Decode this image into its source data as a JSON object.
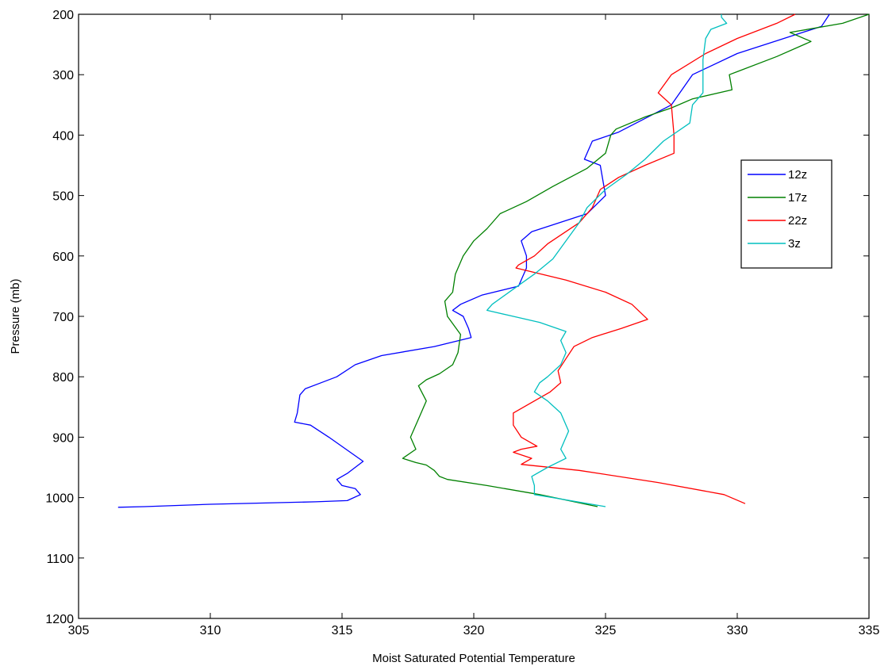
{
  "chart_data": {
    "type": "line",
    "title": "",
    "xlabel": "Moist Saturated Potential Temperature",
    "ylabel": "Pressure (mb)",
    "xlim": [
      305,
      335
    ],
    "ylim": [
      200,
      1200
    ],
    "y_inverted": true,
    "grid": false,
    "legend_position": "right",
    "xticks": [
      305,
      310,
      315,
      320,
      325,
      330,
      335
    ],
    "yticks": [
      200,
      300,
      400,
      500,
      600,
      700,
      800,
      900,
      1000,
      1100,
      1200
    ],
    "series": [
      {
        "name": "12z",
        "color": "#0000ff",
        "points": [
          [
            333.5,
            200
          ],
          [
            333.2,
            220
          ],
          [
            330,
            265
          ],
          [
            328.3,
            300
          ],
          [
            327.5,
            350
          ],
          [
            325.5,
            395
          ],
          [
            324.5,
            410
          ],
          [
            324.2,
            440
          ],
          [
            324.8,
            450
          ],
          [
            325.0,
            500
          ],
          [
            324.3,
            530
          ],
          [
            322.2,
            560
          ],
          [
            321.8,
            575
          ],
          [
            322.0,
            600
          ],
          [
            322.0,
            620
          ],
          [
            321.7,
            650
          ],
          [
            320.3,
            665
          ],
          [
            319.5,
            680
          ],
          [
            319.2,
            690
          ],
          [
            319.6,
            700
          ],
          [
            319.8,
            720
          ],
          [
            319.9,
            735
          ],
          [
            318.5,
            750
          ],
          [
            316.5,
            765
          ],
          [
            315.5,
            780
          ],
          [
            314.8,
            800
          ],
          [
            314.2,
            810
          ],
          [
            313.6,
            820
          ],
          [
            313.4,
            830
          ],
          [
            313.3,
            860
          ],
          [
            313.2,
            875
          ],
          [
            313.8,
            880
          ],
          [
            314.5,
            900
          ],
          [
            315.8,
            940
          ],
          [
            315.5,
            950
          ],
          [
            315.2,
            960
          ],
          [
            314.8,
            970
          ],
          [
            315.0,
            980
          ],
          [
            315.5,
            985
          ],
          [
            315.7,
            995
          ],
          [
            315.2,
            1005
          ],
          [
            314.0,
            1007
          ],
          [
            310,
            1011
          ],
          [
            307.5,
            1015
          ],
          [
            306.5,
            1016
          ]
        ]
      },
      {
        "name": "17z",
        "color": "#008000",
        "points": [
          [
            335,
            200
          ],
          [
            334,
            215
          ],
          [
            332,
            230
          ],
          [
            332.8,
            245
          ],
          [
            331.5,
            270
          ],
          [
            330.0,
            295
          ],
          [
            329.7,
            300
          ],
          [
            329.8,
            325
          ],
          [
            328.3,
            340
          ],
          [
            327.5,
            355
          ],
          [
            326.5,
            370
          ],
          [
            325.4,
            390
          ],
          [
            325.2,
            400
          ],
          [
            325.0,
            430
          ],
          [
            324.3,
            455
          ],
          [
            323.0,
            485
          ],
          [
            322.0,
            510
          ],
          [
            321.0,
            530
          ],
          [
            320.5,
            555
          ],
          [
            320.0,
            575
          ],
          [
            319.6,
            600
          ],
          [
            319.3,
            630
          ],
          [
            319.2,
            660
          ],
          [
            318.9,
            675
          ],
          [
            319.0,
            700
          ],
          [
            319.5,
            730
          ],
          [
            319.4,
            760
          ],
          [
            319.2,
            780
          ],
          [
            318.7,
            795
          ],
          [
            318.2,
            805
          ],
          [
            317.9,
            815
          ],
          [
            318.2,
            840
          ],
          [
            317.9,
            870
          ],
          [
            317.6,
            900
          ],
          [
            317.8,
            920
          ],
          [
            317.3,
            935
          ],
          [
            317.8,
            942
          ],
          [
            318.2,
            946
          ],
          [
            318.5,
            955
          ],
          [
            318.7,
            965
          ],
          [
            319.0,
            970
          ],
          [
            320.5,
            980
          ],
          [
            322.5,
            995
          ],
          [
            324.7,
            1015
          ]
        ]
      },
      {
        "name": "22z",
        "color": "#ff0000",
        "points": [
          [
            332.2,
            200
          ],
          [
            331.5,
            215
          ],
          [
            330.0,
            240
          ],
          [
            328.8,
            265
          ],
          [
            327.5,
            300
          ],
          [
            327.0,
            330
          ],
          [
            327.5,
            350
          ],
          [
            327.6,
            400
          ],
          [
            327.6,
            430
          ],
          [
            326.5,
            450
          ],
          [
            325.5,
            470
          ],
          [
            324.8,
            490
          ],
          [
            324.5,
            520
          ],
          [
            324.0,
            545
          ],
          [
            322.8,
            580
          ],
          [
            322.3,
            600
          ],
          [
            321.7,
            615
          ],
          [
            321.6,
            620
          ],
          [
            323.5,
            640
          ],
          [
            325.0,
            660
          ],
          [
            326.0,
            680
          ],
          [
            326.6,
            705
          ],
          [
            325.6,
            720
          ],
          [
            324.5,
            735
          ],
          [
            323.8,
            750
          ],
          [
            323.5,
            770
          ],
          [
            323.2,
            790
          ],
          [
            323.3,
            810
          ],
          [
            322.9,
            825
          ],
          [
            321.5,
            860
          ],
          [
            321.5,
            880
          ],
          [
            321.8,
            900
          ],
          [
            322.4,
            915
          ],
          [
            321.8,
            920
          ],
          [
            321.5,
            925
          ],
          [
            322.2,
            935
          ],
          [
            321.8,
            945
          ],
          [
            324.0,
            955
          ],
          [
            327.0,
            975
          ],
          [
            329.5,
            995
          ],
          [
            330.3,
            1010
          ]
        ]
      },
      {
        "name": "3z",
        "color": "#00bfbf",
        "points": [
          [
            329.4,
            200
          ],
          [
            329.4,
            205
          ],
          [
            329.6,
            215
          ],
          [
            329.0,
            225
          ],
          [
            328.8,
            240
          ],
          [
            328.7,
            275
          ],
          [
            328.7,
            300
          ],
          [
            328.7,
            330
          ],
          [
            328.3,
            350
          ],
          [
            328.2,
            380
          ],
          [
            327.2,
            410
          ],
          [
            326.5,
            440
          ],
          [
            325.8,
            465
          ],
          [
            325.0,
            490
          ],
          [
            324.3,
            520
          ],
          [
            324.0,
            545
          ],
          [
            323.5,
            575
          ],
          [
            323.0,
            605
          ],
          [
            322.3,
            630
          ],
          [
            321.5,
            655
          ],
          [
            320.7,
            680
          ],
          [
            320.5,
            690
          ],
          [
            321.5,
            700
          ],
          [
            322.5,
            710
          ],
          [
            323.5,
            725
          ],
          [
            323.3,
            740
          ],
          [
            323.5,
            760
          ],
          [
            323.3,
            780
          ],
          [
            322.8,
            800
          ],
          [
            322.5,
            810
          ],
          [
            322.3,
            825
          ],
          [
            322.8,
            840
          ],
          [
            323.3,
            860
          ],
          [
            323.6,
            890
          ],
          [
            323.3,
            920
          ],
          [
            323.5,
            935
          ],
          [
            322.8,
            950
          ],
          [
            322.2,
            965
          ],
          [
            322.3,
            980
          ],
          [
            322.3,
            995
          ],
          [
            323.0,
            1000
          ],
          [
            325.0,
            1015
          ]
        ]
      }
    ]
  }
}
